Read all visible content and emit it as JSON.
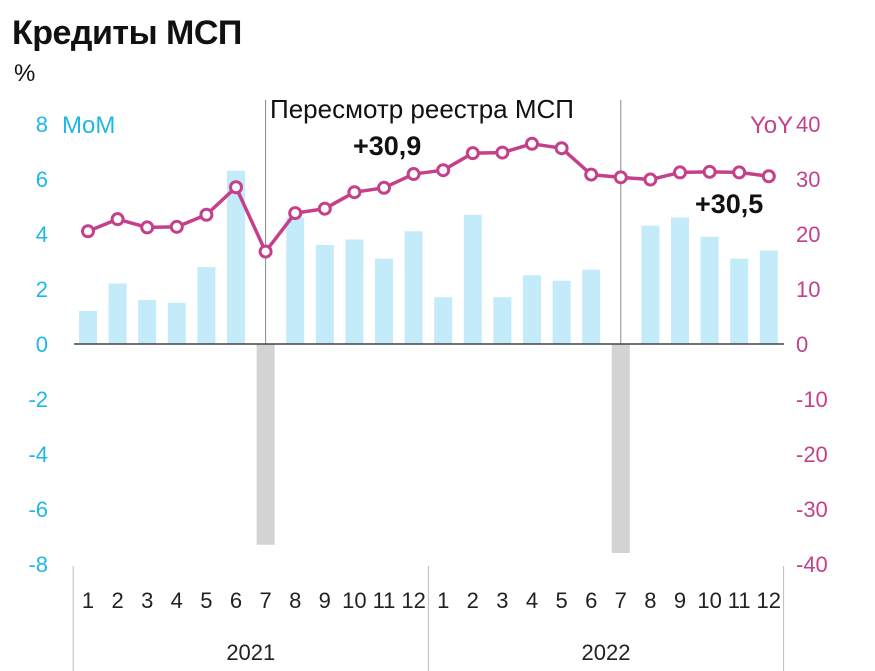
{
  "title": "Кредиты МСП",
  "unit": "%",
  "chart_data": {
    "type": "bar+line",
    "x": {
      "months": [
        "1",
        "2",
        "3",
        "4",
        "5",
        "6",
        "7",
        "8",
        "9",
        "10",
        "11",
        "12",
        "1",
        "2",
        "3",
        "4",
        "5",
        "6",
        "7",
        "8",
        "9",
        "10",
        "11",
        "12"
      ],
      "years": [
        "2021",
        "2022"
      ]
    },
    "y_left": {
      "label": "MoM",
      "ticks": [
        "8",
        "6",
        "4",
        "2",
        "0",
        "-2",
        "-4",
        "-6",
        "-8"
      ],
      "range": [
        -8,
        8
      ]
    },
    "y_right": {
      "label": "YoY",
      "ticks": [
        "40",
        "30",
        "20",
        "10",
        "0",
        "-10",
        "-20",
        "-30",
        "-40"
      ],
      "range": [
        -40,
        40
      ]
    },
    "series": [
      {
        "name": "MoM",
        "kind": "bar",
        "color": "#c4ebfa",
        "values": [
          1.2,
          2.2,
          1.6,
          1.5,
          2.8,
          6.3,
          -7.3,
          4.6,
          3.6,
          3.8,
          3.1,
          4.1,
          1.7,
          4.7,
          1.7,
          2.5,
          2.3,
          2.7,
          -7.6,
          4.3,
          4.6,
          3.9,
          3.1,
          3.4
        ],
        "negative_color": "#d3d3d3"
      },
      {
        "name": "YoY",
        "kind": "line",
        "color": "#c5408a",
        "values": [
          20.5,
          22.7,
          21.2,
          21.3,
          23.5,
          28.5,
          16.8,
          23.8,
          24.6,
          27.6,
          28.4,
          30.9,
          31.6,
          34.7,
          34.8,
          36.4,
          35.6,
          30.8,
          30.3,
          29.9,
          31.2,
          31.3,
          31.2,
          30.5
        ]
      }
    ],
    "annotations": [
      {
        "text": "Пересмотр реестра МСП"
      },
      {
        "text": "+30,9"
      },
      {
        "text": "+30,5"
      }
    ],
    "grid": false
  }
}
